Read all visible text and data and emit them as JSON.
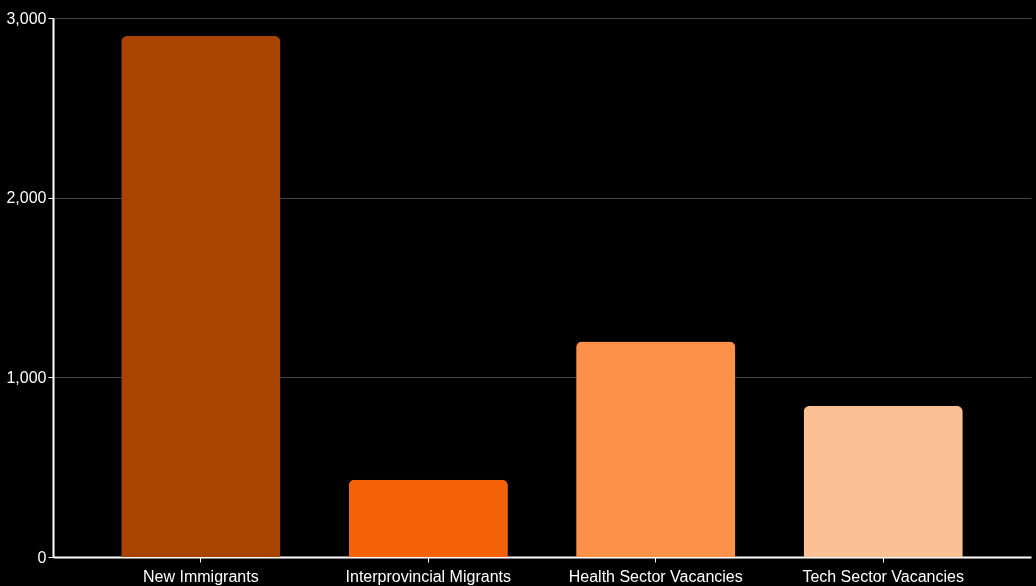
{
  "chart_data": {
    "type": "bar",
    "categories": [
      "New Immigrants",
      "Interprovincial Migrants",
      "Health Sector Vacancies",
      "Tech Sector Vacancies"
    ],
    "values": [
      2900,
      430,
      1200,
      840
    ],
    "colors": [
      "#a84300",
      "#f56207",
      "#fd914a",
      "#fdbf94"
    ],
    "ylim": [
      0,
      3000
    ],
    "yticks": [
      {
        "value": 0,
        "label": "0"
      },
      {
        "value": 1000,
        "label": "1,000"
      },
      {
        "value": 2000,
        "label": "2,000"
      },
      {
        "value": 3000,
        "label": "3,000"
      }
    ],
    "grid": "y",
    "legend": false
  }
}
